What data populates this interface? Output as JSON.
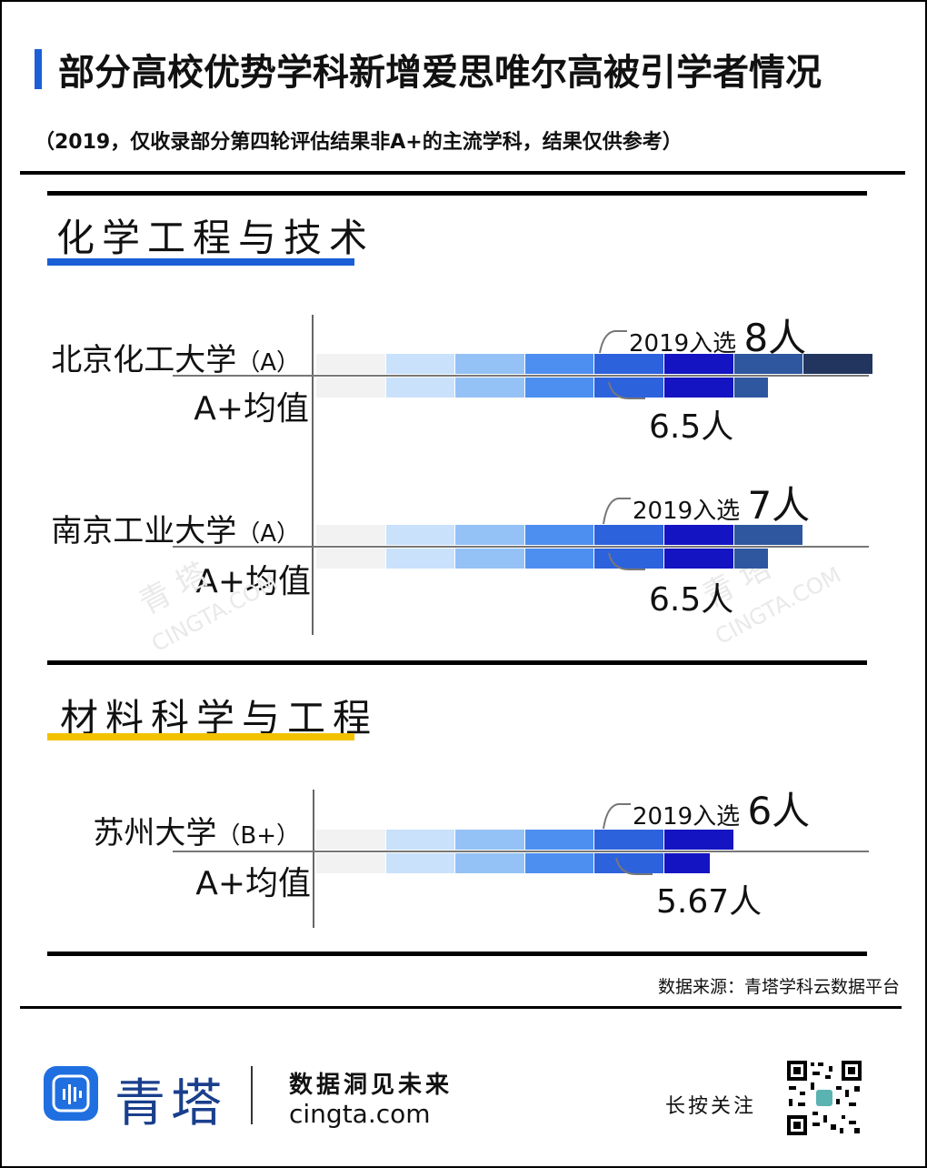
{
  "title": "部分高校优势学科新增爱思唯尔高被引学者情况",
  "subtitle": "（2019，仅收录部分第四轮评估结果非A+的主流学科，结果仅供参考）",
  "source": "数据来源：青塔学科云数据平台",
  "sections": [
    {
      "name": "化学工程与技术",
      "underline_color": "#1a5fd6",
      "universities": [
        {
          "name": "北京化工大学",
          "level": "（A）",
          "avg_label": "A+均值"
        },
        {
          "name": "南京工业大学",
          "level": "（A）",
          "avg_label": "A+均值"
        }
      ]
    },
    {
      "name": "材料科学与工程",
      "underline_color": "#f2c200",
      "universities": [
        {
          "name": "苏州大学",
          "level": "（B+）",
          "avg_label": "A+均值"
        }
      ]
    }
  ],
  "chart_data": [
    {
      "type": "bar",
      "title": "化学工程与技术",
      "categories": [
        "北京化工大学",
        "南京工业大学"
      ],
      "series": [
        {
          "name": "2019入选",
          "values": [
            8,
            7
          ]
        },
        {
          "name": "A+均值",
          "values": [
            6.5,
            6.5
          ]
        }
      ],
      "labels": {
        "selected": [
          {
            "prefix": "2019入选",
            "value": "8人"
          },
          {
            "prefix": "2019入选",
            "value": "7人"
          }
        ],
        "avg": [
          "6.5人",
          "6.5人"
        ]
      },
      "xlim": [
        0,
        8
      ]
    },
    {
      "type": "bar",
      "title": "材料科学与工程",
      "categories": [
        "苏州大学"
      ],
      "series": [
        {
          "name": "2019入选",
          "values": [
            6
          ]
        },
        {
          "name": "A+均值",
          "values": [
            5.67
          ]
        }
      ],
      "labels": {
        "selected": [
          {
            "prefix": "2019入选",
            "value": "6人"
          }
        ],
        "avg": [
          "5.67人"
        ]
      },
      "xlim": [
        0,
        8
      ]
    }
  ],
  "segment_colors": [
    "#f2f2f2",
    "#c9e1fb",
    "#94c2f6",
    "#4d8ff0",
    "#2d62dd",
    "#1414c2",
    "#2e57a0",
    "#22355f"
  ],
  "footer": {
    "brand": "青塔",
    "slogan": "数据洞见未来",
    "site": "cingta.com",
    "follow": "长按关注"
  },
  "watermark": {
    "brand": "青 塔",
    "site": "CINGTA.COM"
  }
}
